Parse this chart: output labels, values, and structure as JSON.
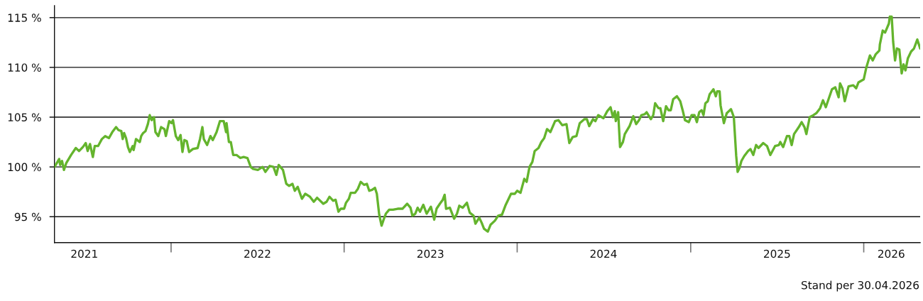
{
  "chart_data": {
    "type": "line",
    "x": [
      "2021-04-30",
      "2021-05-05",
      "2021-05-10",
      "2021-05-12",
      "2021-05-16",
      "2021-05-20",
      "2021-05-25",
      "2021-06-04",
      "2021-06-14",
      "2021-06-21",
      "2021-06-29",
      "2021-07-05",
      "2021-07-09",
      "2021-07-14",
      "2021-07-20",
      "2021-07-24",
      "2021-07-31",
      "2021-08-08",
      "2021-08-15",
      "2021-08-23",
      "2021-08-30",
      "2021-09-07",
      "2021-09-12",
      "2021-09-18",
      "2021-09-21",
      "2021-09-24",
      "2021-09-28",
      "2021-10-02",
      "2021-10-06",
      "2021-10-12",
      "2021-10-14",
      "2021-10-19",
      "2021-10-27",
      "2021-10-30",
      "2021-11-03",
      "2021-11-08",
      "2021-11-13",
      "2021-11-17",
      "2021-11-21",
      "2021-11-26",
      "2021-11-29",
      "2021-12-05",
      "2021-12-11",
      "2021-12-18",
      "2021-12-21",
      "2021-12-28",
      "2022-01-02",
      "2022-01-05",
      "2022-01-11",
      "2022-01-16",
      "2022-01-21",
      "2022-01-25",
      "2022-01-29",
      "2022-02-03",
      "2022-02-08",
      "2022-02-16",
      "2022-02-26",
      "2022-03-03",
      "2022-03-08",
      "2022-03-11",
      "2022-03-18",
      "2022-03-25",
      "2022-03-30",
      "2022-04-07",
      "2022-04-14",
      "2022-04-22",
      "2022-04-27",
      "2022-04-28",
      "2022-05-03",
      "2022-05-07",
      "2022-05-12",
      "2022-05-19",
      "2022-05-27",
      "2022-06-03",
      "2022-06-11",
      "2022-06-18",
      "2022-06-23",
      "2022-07-03",
      "2022-07-13",
      "2022-07-19",
      "2022-07-28",
      "2022-08-05",
      "2022-08-11",
      "2022-08-16",
      "2022-08-25",
      "2022-09-01",
      "2022-09-07",
      "2022-09-14",
      "2022-09-19",
      "2022-09-25",
      "2022-10-04",
      "2022-10-11",
      "2022-10-21",
      "2022-10-29",
      "2022-11-05",
      "2022-11-18",
      "2022-11-25",
      "2022-12-01",
      "2022-12-09",
      "2022-12-14",
      "2022-12-20",
      "2022-12-25",
      "2023-01-01",
      "2023-01-05",
      "2023-01-11",
      "2023-01-15",
      "2023-01-24",
      "2023-01-30",
      "2023-02-05",
      "2023-02-12",
      "2023-02-18",
      "2023-02-23",
      "2023-03-01",
      "2023-03-07",
      "2023-03-11",
      "2023-03-16",
      "2023-03-21",
      "2023-03-26",
      "2023-03-30",
      "2023-04-06",
      "2023-04-14",
      "2023-04-24",
      "2023-05-04",
      "2023-05-14",
      "2023-05-21",
      "2023-05-25",
      "2023-05-31",
      "2023-06-05",
      "2023-06-10",
      "2023-06-17",
      "2023-06-24",
      "2023-07-03",
      "2023-07-10",
      "2023-07-15",
      "2023-07-22",
      "2023-07-28",
      "2023-08-01",
      "2023-08-04",
      "2023-08-12",
      "2023-08-21",
      "2023-08-27",
      "2023-09-01",
      "2023-09-08",
      "2023-09-17",
      "2023-09-23",
      "2023-10-01",
      "2023-10-05",
      "2023-10-13",
      "2023-10-18",
      "2023-10-23",
      "2023-10-31",
      "2023-11-06",
      "2023-11-15",
      "2023-11-22",
      "2023-11-30",
      "2023-12-07",
      "2023-12-19",
      "2023-12-27",
      "2024-01-01",
      "2024-01-08",
      "2024-01-16",
      "2024-01-21",
      "2024-01-27",
      "2024-02-02",
      "2024-02-07",
      "2024-02-15",
      "2024-02-21",
      "2024-02-27",
      "2024-03-04",
      "2024-03-11",
      "2024-03-21",
      "2024-03-28",
      "2024-04-05",
      "2024-04-14",
      "2024-04-20",
      "2024-04-27",
      "2024-05-05",
      "2024-05-12",
      "2024-05-22",
      "2024-05-27",
      "2024-06-01",
      "2024-06-09",
      "2024-06-14",
      "2024-06-20",
      "2024-07-01",
      "2024-07-09",
      "2024-07-16",
      "2024-07-21",
      "2024-07-25",
      "2024-07-27",
      "2024-08-01",
      "2024-08-05",
      "2024-08-11",
      "2024-08-15",
      "2024-08-25",
      "2024-09-02",
      "2024-09-08",
      "2024-09-14",
      "2024-09-19",
      "2024-09-26",
      "2024-09-30",
      "2024-10-09",
      "2024-10-14",
      "2024-10-18",
      "2024-10-25",
      "2024-10-29",
      "2024-11-04",
      "2024-11-10",
      "2024-11-15",
      "2024-11-20",
      "2024-11-25",
      "2024-12-03",
      "2024-12-10",
      "2024-12-15",
      "2024-12-20",
      "2024-12-28",
      "2025-01-03",
      "2025-01-09",
      "2025-01-14",
      "2025-01-19",
      "2025-01-24",
      "2025-01-28",
      "2025-02-01",
      "2025-02-06",
      "2025-02-10",
      "2025-02-18",
      "2025-02-23",
      "2025-02-26",
      "2025-03-03",
      "2025-03-05",
      "2025-03-12",
      "2025-03-18",
      "2025-03-27",
      "2025-04-02",
      "2025-04-07",
      "2025-04-10",
      "2025-04-14",
      "2025-04-18",
      "2025-04-24",
      "2025-05-02",
      "2025-05-07",
      "2025-05-13",
      "2025-05-19",
      "2025-05-24",
      "2025-06-03",
      "2025-06-11",
      "2025-06-18",
      "2025-06-28",
      "2025-07-06",
      "2025-07-09",
      "2025-07-15",
      "2025-07-23",
      "2025-07-28",
      "2025-08-02",
      "2025-08-07",
      "2025-08-17",
      "2025-08-23",
      "2025-08-29",
      "2025-09-02",
      "2025-09-09",
      "2025-09-17",
      "2025-09-23",
      "2025-10-01",
      "2025-10-07",
      "2025-10-13",
      "2025-10-18",
      "2025-10-26",
      "2025-11-02",
      "2025-11-09",
      "2025-11-12",
      "2025-11-17",
      "2025-11-22",
      "2025-11-30",
      "2025-12-10",
      "2025-12-16",
      "2025-12-21",
      "2026-01-01",
      "2026-01-06",
      "2026-01-14",
      "2026-01-20",
      "2026-01-26",
      "2026-02-03",
      "2026-02-04",
      "2026-02-10",
      "2026-02-15",
      "2026-02-23",
      "2026-02-25",
      "2026-03-01",
      "2026-03-04",
      "2026-03-08",
      "2026-03-12",
      "2026-03-17",
      "2026-03-22",
      "2026-03-26",
      "2026-03-30",
      "2026-04-04",
      "2026-04-11",
      "2026-04-17",
      "2026-04-24",
      "2026-04-30"
    ],
    "series": [
      {
        "color": "#64b42d",
        "values": [
          100.0,
          100.4,
          100.8,
          100.2,
          100.6,
          99.7,
          100.4,
          101.2,
          101.9,
          101.6,
          102.0,
          102.4,
          101.6,
          102.3,
          101.0,
          102.1,
          102.1,
          102.8,
          103.1,
          102.9,
          103.5,
          104.0,
          103.7,
          103.6,
          102.8,
          103.4,
          102.9,
          102.0,
          101.5,
          102.1,
          101.7,
          102.8,
          102.5,
          103.1,
          103.4,
          103.6,
          104.3,
          105.2,
          104.7,
          105.0,
          103.5,
          103.1,
          104.0,
          103.8,
          103.1,
          104.6,
          104.4,
          104.7,
          103.1,
          102.7,
          103.2,
          101.5,
          102.7,
          102.6,
          101.5,
          101.8,
          101.9,
          102.8,
          104.0,
          102.8,
          102.2,
          103.1,
          102.7,
          103.5,
          104.6,
          104.6,
          103.5,
          104.4,
          102.5,
          102.5,
          101.2,
          101.2,
          100.9,
          101.0,
          100.9,
          100.0,
          99.8,
          99.7,
          100.0,
          99.5,
          100.1,
          100.0,
          99.2,
          100.2,
          99.7,
          98.3,
          98.1,
          98.3,
          97.6,
          98.0,
          96.8,
          97.3,
          97.0,
          96.5,
          96.9,
          96.3,
          96.5,
          97.0,
          96.6,
          96.7,
          95.5,
          95.8,
          95.8,
          96.4,
          96.8,
          97.4,
          97.4,
          97.8,
          98.5,
          98.2,
          98.3,
          97.6,
          97.7,
          97.9,
          97.3,
          95.2,
          94.1,
          94.8,
          95.3,
          95.7,
          95.7,
          95.8,
          95.8,
          96.3,
          95.9,
          95.1,
          95.3,
          95.9,
          95.5,
          96.2,
          95.3,
          96.0,
          94.7,
          95.8,
          96.3,
          96.7,
          97.2,
          95.8,
          95.9,
          94.8,
          95.3,
          96.1,
          95.9,
          96.4,
          95.4,
          95.1,
          94.3,
          94.9,
          94.4,
          93.8,
          93.5,
          94.2,
          94.6,
          95.1,
          95.2,
          96.1,
          97.3,
          97.3,
          97.6,
          97.4,
          98.8,
          98.5,
          100.0,
          100.5,
          101.6,
          101.9,
          102.5,
          102.9,
          103.8,
          103.5,
          104.6,
          104.7,
          104.2,
          104.3,
          102.4,
          103.0,
          103.1,
          104.4,
          104.8,
          104.8,
          104.1,
          104.8,
          104.6,
          105.2,
          104.9,
          105.6,
          106.0,
          105.0,
          105.6,
          104.6,
          105.5,
          102.0,
          102.5,
          103.3,
          104.1,
          105.1,
          104.3,
          104.7,
          105.2,
          105.3,
          105.5,
          104.8,
          105.2,
          106.4,
          105.9,
          105.9,
          104.6,
          106.1,
          105.7,
          105.7,
          106.8,
          107.1,
          106.6,
          105.7,
          104.7,
          104.5,
          105.2,
          105.2,
          104.5,
          105.5,
          105.7,
          105.2,
          106.4,
          106.6,
          107.3,
          107.8,
          107.1,
          107.6,
          107.6,
          106.2,
          104.4,
          105.4,
          105.8,
          105.0,
          101.1,
          99.5,
          99.9,
          100.6,
          101.1,
          101.6,
          101.8,
          101.2,
          102.2,
          101.9,
          102.4,
          102.1,
          101.2,
          102.1,
          102.2,
          102.5,
          102.0,
          103.1,
          103.1,
          102.2,
          103.3,
          104.0,
          104.5,
          104.0,
          103.3,
          105.0,
          105.2,
          105.4,
          105.9,
          106.7,
          106.0,
          106.7,
          107.8,
          108.0,
          107.0,
          108.4,
          107.9,
          106.6,
          108.1,
          108.2,
          107.9,
          108.5,
          108.8,
          109.9,
          111.2,
          110.7,
          111.3,
          111.7,
          112.3,
          113.7,
          113.5,
          114.4,
          115.1,
          115.1,
          112.6,
          110.7,
          111.9,
          111.8,
          109.4,
          110.3,
          109.7,
          110.9,
          111.6,
          111.9,
          112.8,
          111.9
        ]
      }
    ],
    "xlim": [
      "2021-04-30",
      "2026-04-30"
    ],
    "xticks": [
      {
        "value": "2021-07-02",
        "label": "2021"
      },
      {
        "value": "2022-01-01",
        "label": null
      },
      {
        "value": "2022-07-02",
        "label": "2022"
      },
      {
        "value": "2023-01-01",
        "label": null
      },
      {
        "value": "2023-07-02",
        "label": "2023"
      },
      {
        "value": "2024-01-01",
        "label": null
      },
      {
        "value": "2024-07-01",
        "label": "2024"
      },
      {
        "value": "2025-01-01",
        "label": null
      },
      {
        "value": "2025-07-02",
        "label": "2025"
      },
      {
        "value": "2026-01-01",
        "label": null
      },
      {
        "value": "2026-02-28",
        "label": "2026"
      }
    ],
    "ylim": [
      92.4,
      116.2
    ],
    "yticks": [
      {
        "value": 95,
        "label": "95 %"
      },
      {
        "value": 100,
        "label": "100 %"
      },
      {
        "value": 105,
        "label": "105 %"
      },
      {
        "value": 110,
        "label": "110 %"
      },
      {
        "value": 115,
        "label": "115 %"
      }
    ],
    "grid": "y",
    "line_style": "solid",
    "annotations": [
      "Stand per 30.04.2026"
    ]
  }
}
